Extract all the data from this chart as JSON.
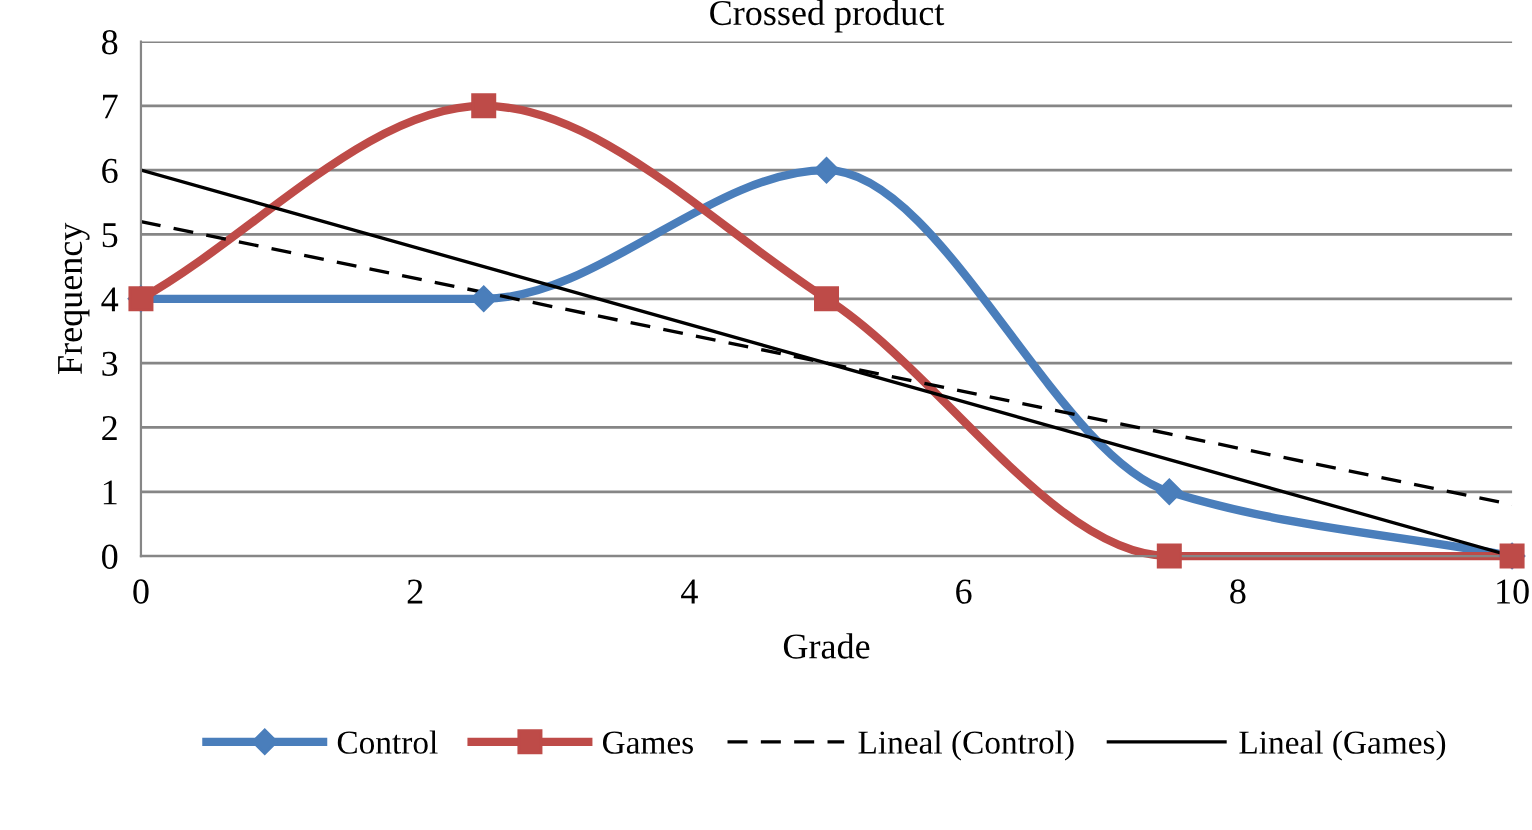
{
  "chart_data": {
    "type": "line",
    "title": "Crossed product",
    "xlabel": "Grade",
    "ylabel": "Frequency",
    "x": [
      0,
      2.5,
      5,
      7.5,
      10
    ],
    "series": [
      {
        "name": "Control",
        "color": "#4a7ebb",
        "values": [
          4,
          4,
          6,
          1,
          0
        ],
        "marker": "diamond",
        "line_style": "solid"
      },
      {
        "name": "Games",
        "color": "#be4b48",
        "values": [
          4,
          7,
          4,
          0,
          0
        ],
        "marker": "square",
        "line_style": "solid"
      },
      {
        "name": "Lineal (Control)",
        "color": "#000000",
        "values": [
          5.2,
          4.1,
          3,
          1.9,
          0.8
        ],
        "marker": "none",
        "line_style": "dashed"
      },
      {
        "name": "Lineal (Games)",
        "color": "#000000",
        "values": [
          6,
          4.5,
          3,
          1.5,
          0
        ],
        "marker": "none",
        "line_style": "solid"
      }
    ],
    "xlim": [
      0,
      10
    ],
    "xticks": [
      0,
      2,
      4,
      6,
      8,
      10
    ],
    "ylim": [
      0,
      8
    ],
    "yticks": [
      0,
      1,
      2,
      3,
      4,
      5,
      6,
      7,
      8
    ],
    "grid": "y",
    "legend": "bottom"
  }
}
